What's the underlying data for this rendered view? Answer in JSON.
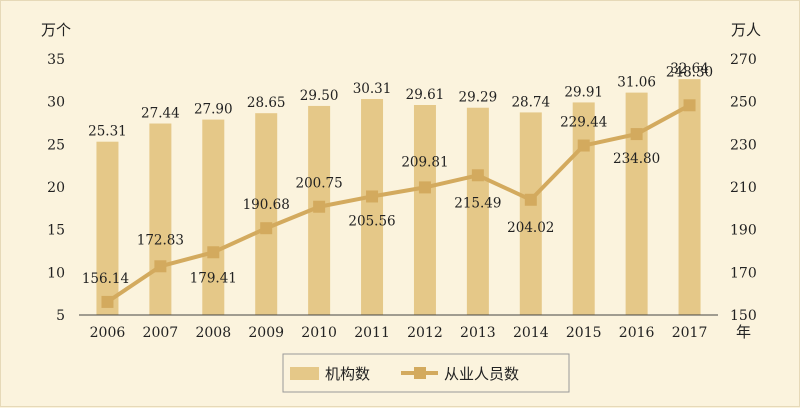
{
  "chart_data": {
    "type": "bar+line",
    "categories": [
      "2006",
      "2007",
      "2008",
      "2009",
      "2010",
      "2011",
      "2012",
      "2013",
      "2014",
      "2015",
      "2016",
      "2017"
    ],
    "series": [
      {
        "name": "机构数",
        "kind": "bar",
        "axis": "left",
        "color": "#e5c888",
        "values": [
          25.31,
          27.44,
          27.9,
          28.65,
          29.5,
          30.31,
          29.61,
          29.29,
          28.74,
          29.91,
          31.06,
          32.64
        ],
        "labels": [
          "25.31",
          "27.44",
          "27.90",
          "28.65",
          "29.50",
          "30.31",
          "29.61",
          "29.29",
          "28.74",
          "29.91",
          "31.06",
          "32.64"
        ]
      },
      {
        "name": "从业人员数",
        "kind": "line",
        "axis": "right",
        "color": "#d3aa5e",
        "values": [
          156.14,
          172.83,
          179.41,
          190.68,
          200.75,
          205.56,
          209.81,
          215.49,
          204.02,
          229.44,
          234.8,
          248.3
        ],
        "labels": [
          "156.14",
          "172.83",
          "179.41",
          "190.68",
          "200.75",
          "205.56",
          "209.81",
          "215.49",
          "204.02",
          "229.44",
          "234.80",
          "248.30"
        ]
      }
    ],
    "left_axis": {
      "unit": "万个",
      "ylim": [
        5,
        35
      ],
      "ticks": [
        "5",
        "10",
        "15",
        "20",
        "25",
        "30",
        "35"
      ]
    },
    "right_axis": {
      "unit": "万人",
      "ylim": [
        150,
        270
      ],
      "ticks": [
        "150",
        "170",
        "190",
        "210",
        "230",
        "250",
        "270"
      ]
    },
    "x_unit": "年",
    "grid": false,
    "legend_position": "bottom-center"
  }
}
